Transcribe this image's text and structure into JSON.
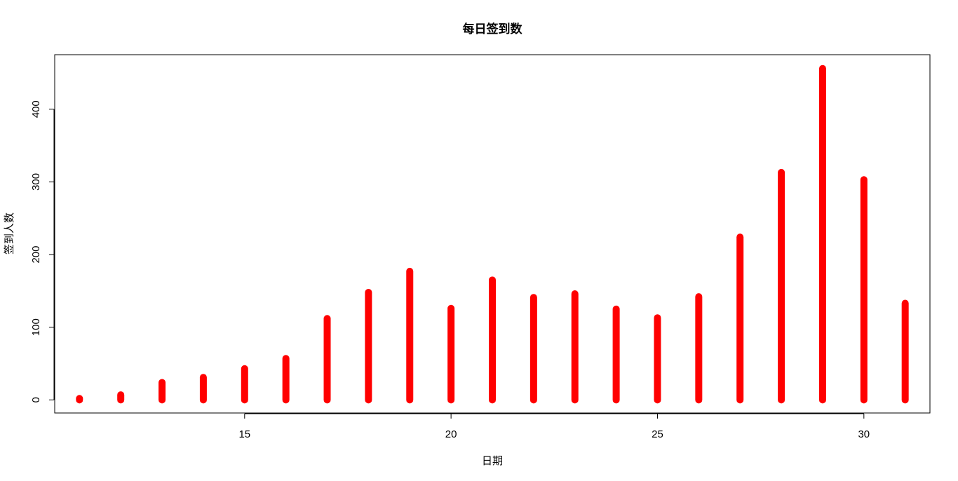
{
  "chart_data": {
    "type": "line",
    "title": "每日签到数",
    "xlabel": "日期",
    "ylabel": "签到人数",
    "x": [
      11,
      12,
      13,
      14,
      15,
      16,
      17,
      18,
      19,
      20,
      21,
      22,
      23,
      24,
      25,
      26,
      27,
      28,
      29,
      30,
      31
    ],
    "y": [
      2,
      7,
      24,
      31,
      43,
      57,
      112,
      148,
      177,
      126,
      165,
      141,
      146,
      125,
      113,
      142,
      224,
      313,
      456,
      303,
      133
    ],
    "xlim": [
      10.4,
      31.6
    ],
    "ylim": [
      -18,
      475
    ],
    "xticks": [
      "15",
      "20",
      "25",
      "30"
    ],
    "yticks": [
      "0",
      "100",
      "200",
      "300",
      "400"
    ],
    "color": "#ff0000",
    "grid": false,
    "legend": "none"
  }
}
